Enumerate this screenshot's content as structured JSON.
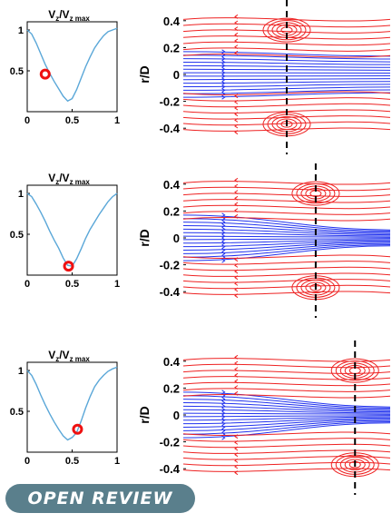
{
  "chart_data": [
    {
      "type": "line",
      "title_main": "V",
      "title_sub1": "z",
      "title_mid": "/V",
      "title_sub2": "z max",
      "xticks": [
        "0",
        "0.5",
        "1"
      ],
      "yticks": [
        "0.5",
        "1"
      ],
      "xlim": [
        0,
        1
      ],
      "ylim": [
        0,
        1.1
      ],
      "series": [
        {
          "x": [
            0,
            0.05,
            0.1,
            0.15,
            0.2,
            0.25,
            0.3,
            0.35,
            0.4,
            0.45,
            0.5,
            0.55,
            0.6,
            0.65,
            0.7,
            0.75,
            0.8,
            0.85,
            0.9,
            0.95,
            1.0
          ],
          "values": [
            1.0,
            0.95,
            0.84,
            0.71,
            0.58,
            0.47,
            0.37,
            0.28,
            0.19,
            0.13,
            0.16,
            0.27,
            0.41,
            0.55,
            0.67,
            0.78,
            0.86,
            0.93,
            0.98,
            1.0,
            1.02
          ]
        }
      ],
      "marker": {
        "x": 0.2,
        "y": 0.46
      },
      "color_line": "#5aa7d8",
      "color_marker": "#ee1111"
    },
    {
      "type": "line",
      "title_main": "V",
      "title_sub1": "z",
      "title_mid": "/V",
      "title_sub2": "z max",
      "xticks": [
        "0",
        "0.5",
        "1"
      ],
      "yticks": [
        "0.5",
        "1"
      ],
      "xlim": [
        0,
        1
      ],
      "ylim": [
        0,
        1.1
      ],
      "series": [
        {
          "x": [
            0,
            0.05,
            0.1,
            0.15,
            0.2,
            0.25,
            0.3,
            0.35,
            0.4,
            0.45,
            0.5,
            0.55,
            0.6,
            0.65,
            0.7,
            0.75,
            0.8,
            0.85,
            0.9,
            0.95,
            1.0
          ],
          "values": [
            1.0,
            0.96,
            0.87,
            0.77,
            0.66,
            0.54,
            0.43,
            0.33,
            0.21,
            0.12,
            0.11,
            0.2,
            0.32,
            0.45,
            0.56,
            0.65,
            0.74,
            0.82,
            0.9,
            0.96,
            1.0
          ]
        }
      ],
      "marker": {
        "x": 0.46,
        "y": 0.11
      },
      "color_line": "#5aa7d8",
      "color_marker": "#ee1111"
    },
    {
      "type": "line",
      "title_main": "V",
      "title_sub1": "z",
      "title_mid": "/V",
      "title_sub2": "z max",
      "xticks": [
        "0",
        "0.5",
        "1"
      ],
      "yticks": [
        "0.5",
        "1"
      ],
      "xlim": [
        0,
        1
      ],
      "ylim": [
        0,
        1.1
      ],
      "series": [
        {
          "x": [
            0,
            0.05,
            0.1,
            0.15,
            0.2,
            0.25,
            0.3,
            0.35,
            0.4,
            0.45,
            0.5,
            0.55,
            0.6,
            0.65,
            0.7,
            0.75,
            0.8,
            0.85,
            0.9,
            0.95,
            1.0
          ],
          "values": [
            1.0,
            0.94,
            0.83,
            0.7,
            0.58,
            0.47,
            0.37,
            0.28,
            0.2,
            0.15,
            0.18,
            0.24,
            0.38,
            0.54,
            0.68,
            0.8,
            0.88,
            0.94,
            0.99,
            1.02,
            1.04
          ]
        }
      ],
      "marker": {
        "x": 0.56,
        "y": 0.28
      },
      "color_line": "#5aa7d8",
      "color_marker": "#ee1111"
    }
  ],
  "streamline_plots": [
    {
      "ylabel": "r/D",
      "yticks": [
        "0.4",
        "0.2",
        "0",
        "-0.2",
        "-0.4"
      ],
      "ylim": [
        -0.5,
        0.5
      ],
      "dashed_line_x": 0.5
    },
    {
      "ylabel": "r/D",
      "yticks": [
        "0.4",
        "0.2",
        "0",
        "-0.2",
        "-0.4"
      ],
      "ylim": [
        -0.5,
        0.5
      ],
      "dashed_line_x": 0.64
    },
    {
      "ylabel": "r/D",
      "yticks": [
        "0.4",
        "0.2",
        "0",
        "-0.2",
        "-0.4"
      ],
      "ylim": [
        -0.5,
        0.5
      ],
      "dashed_line_x": 0.83
    }
  ],
  "colors": {
    "recirculation": "#ee2222",
    "core_flow": "#2233ee",
    "banner": "#5a7f8c"
  },
  "banner": {
    "label": "OPEN REVIEW"
  }
}
